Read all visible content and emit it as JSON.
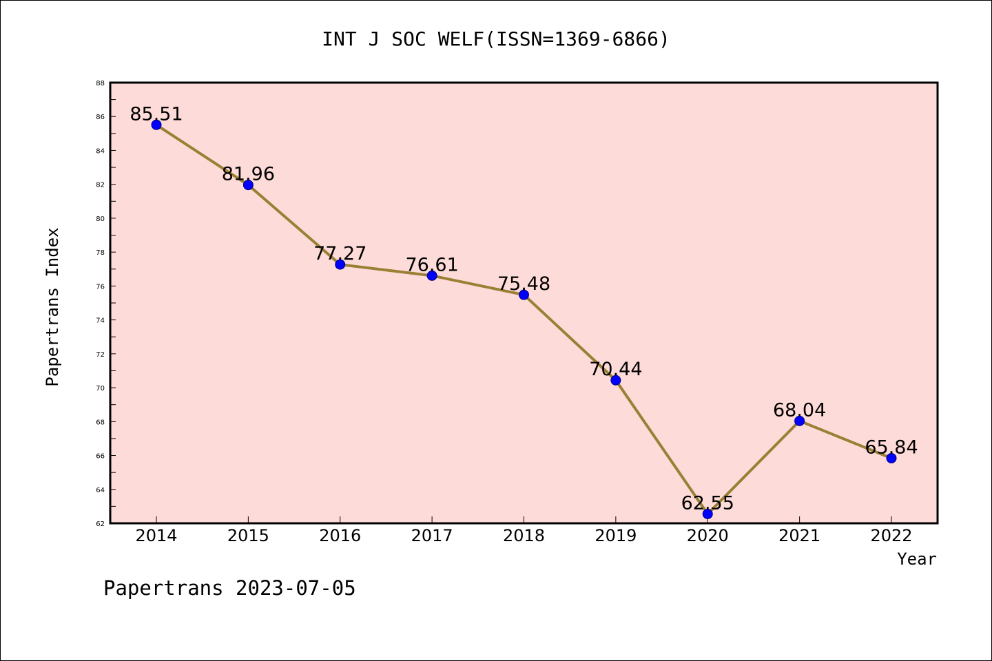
{
  "chart_data": {
    "type": "line",
    "title": "INT J SOC WELF(ISSN=1369-6866)",
    "xlabel": "Year",
    "ylabel": "Papertrans Index",
    "x": [
      "2014",
      "2015",
      "2016",
      "2017",
      "2018",
      "2019",
      "2020",
      "2021",
      "2022"
    ],
    "series": [
      {
        "values": [
          85.51,
          81.96,
          77.27,
          76.61,
          75.48,
          70.44,
          62.55,
          68.04,
          65.84
        ],
        "labels": [
          "85.51",
          "81.96",
          "77.27",
          "76.61",
          "75.48",
          "70.44",
          "62.55",
          "68.04",
          "65.84"
        ]
      }
    ],
    "ylim": [
      62,
      88
    ],
    "yticks": [
      "62",
      "64",
      "66",
      "68",
      "70",
      "72",
      "74",
      "76",
      "78",
      "80",
      "82",
      "84",
      "86",
      "88"
    ],
    "grid": false,
    "legend": "none",
    "colors": {
      "plot_background": "#fddbd8",
      "line": "#9a8035",
      "marker": "#0000ff",
      "marker_edge": "#000080"
    }
  },
  "footer": {
    "text": "Papertrans 2023-07-05"
  }
}
